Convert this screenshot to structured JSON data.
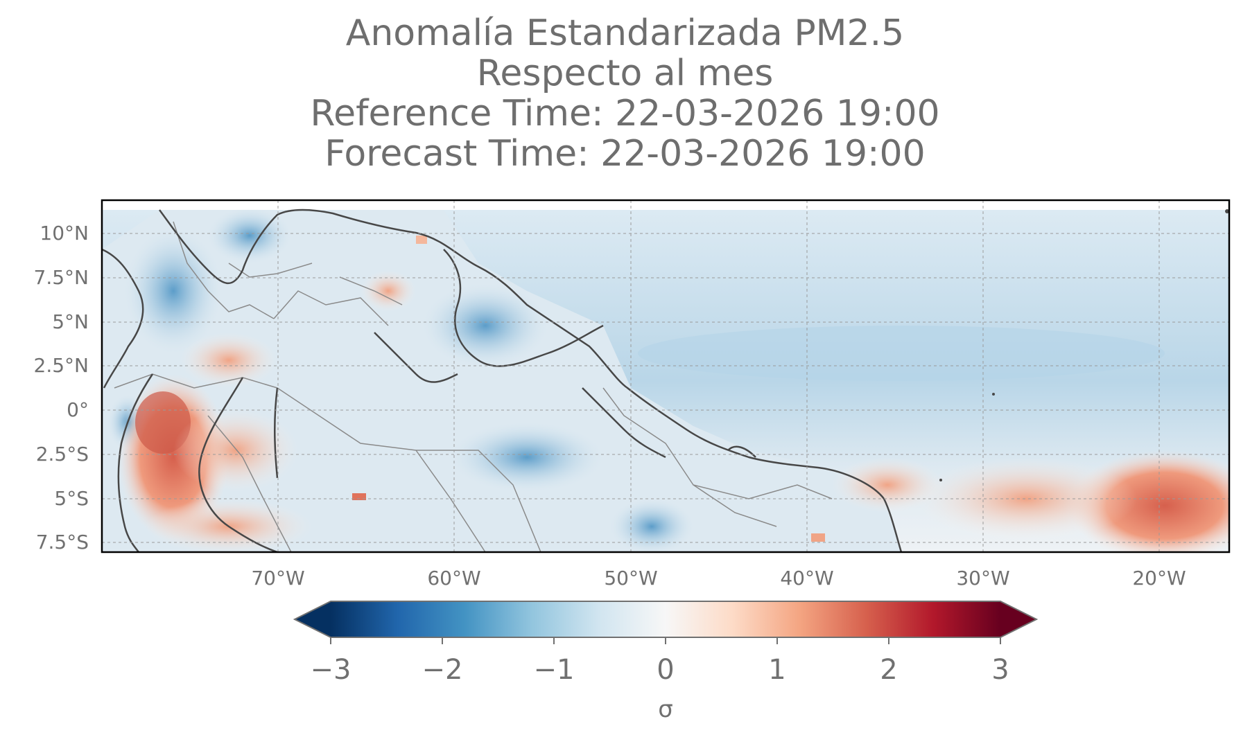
{
  "title": {
    "line1": "Anomalía Estandarizada PM2.5",
    "line2": "Respecto al mes",
    "line3": "Reference Time: 22-03-2026 19:00",
    "line4": "Forecast Time: 22-03-2026 19:00"
  },
  "map": {
    "extent_lon": [
      -80,
      -16
    ],
    "extent_lat": [
      -8,
      11.5
    ],
    "lat_ticks": [
      "10°N",
      "7.5°N",
      "5°N",
      "2.5°N",
      "0°",
      "2.5°S",
      "5°S",
      "7.5°S"
    ],
    "lon_ticks": [
      "70°W",
      "60°W",
      "50°W",
      "40°W",
      "30°W",
      "20°W"
    ],
    "ocean_color": "#cfe3ef",
    "gridlines": true
  },
  "colorbar": {
    "ticks": [
      "−3",
      "−2",
      "−1",
      "0",
      "1",
      "2",
      "3"
    ],
    "unit": "σ",
    "colormap": "RdBu_r",
    "extend": "both",
    "range": [
      -3,
      3
    ]
  }
}
